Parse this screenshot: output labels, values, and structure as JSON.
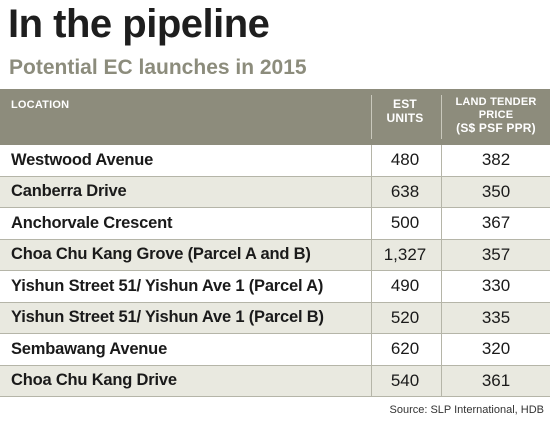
{
  "title": "In the pipeline",
  "subtitle": "Potential EC launches in 2015",
  "table": {
    "headers": {
      "location": "LOCATION",
      "units_line1": "EST",
      "units_line2": "UNITS",
      "price_line1": "LAND TENDER",
      "price_line2": "PRICE",
      "price_line3": "(S$ PSF PPR)"
    },
    "rows": [
      {
        "location": "Westwood Avenue",
        "units": "480",
        "price": "382"
      },
      {
        "location": "Canberra Drive",
        "units": "638",
        "price": "350"
      },
      {
        "location": "Anchorvale Crescent",
        "units": "500",
        "price": "367"
      },
      {
        "location": "Choa Chu Kang Grove (Parcel A and B)",
        "units": "1,327",
        "price": "357"
      },
      {
        "location": "Yishun Street 51/ Yishun Ave 1 (Parcel A)",
        "units": "490",
        "price": "330"
      },
      {
        "location": "Yishun Street 51/ Yishun Ave 1 (Parcel B)",
        "units": "520",
        "price": "335"
      },
      {
        "location": "Sembawang Avenue",
        "units": "620",
        "price": "320"
      },
      {
        "location": "Choa Chu Kang Drive",
        "units": "540",
        "price": "361"
      }
    ]
  },
  "source": "Source: SLP International, HDB",
  "colors": {
    "header_bg": "#8d8c7c",
    "alt_row_bg": "#e9e9e0",
    "subtitle": "#8c8c7c"
  }
}
